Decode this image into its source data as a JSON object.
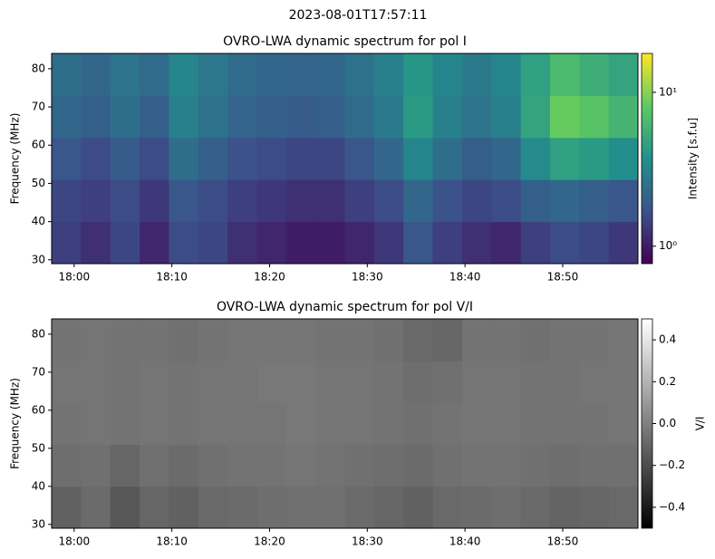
{
  "suptitle": "2023-08-01T17:57:11",
  "chart_data": [
    {
      "type": "heatmap",
      "title": "OVRO-LWA dynamic spectrum for pol I",
      "y_label": "Frequency (MHz)",
      "xlim": [
        1077.7,
        1137.7
      ],
      "ylim": [
        29,
        84
      ],
      "xticks": [
        {
          "value": 1080,
          "label": "18:00"
        },
        {
          "value": 1090,
          "label": "18:10"
        },
        {
          "value": 1100,
          "label": "18:20"
        },
        {
          "value": 1110,
          "label": "18:30"
        },
        {
          "value": 1120,
          "label": "18:40"
        },
        {
          "value": 1130,
          "label": "18:50"
        }
      ],
      "yticks": [
        30,
        40,
        50,
        60,
        70,
        80
      ],
      "x_bins": [
        1077.7,
        1080.7,
        1083.7,
        1086.7,
        1089.7,
        1092.7,
        1095.7,
        1098.7,
        1101.7,
        1104.7,
        1107.7,
        1110.7,
        1113.7,
        1116.7,
        1119.7,
        1122.7,
        1125.7,
        1128.7,
        1131.7,
        1134.7,
        1137.7
      ],
      "y_bins": [
        29,
        40,
        51,
        62,
        73,
        84
      ],
      "values": [
        [
          1.4,
          1.2,
          1.5,
          1.1,
          1.6,
          1.5,
          1.2,
          1.1,
          1.0,
          1.0,
          1.1,
          1.3,
          1.8,
          1.4,
          1.2,
          1.1,
          1.4,
          1.6,
          1.5,
          1.3
        ],
        [
          1.5,
          1.4,
          1.6,
          1.3,
          1.8,
          1.6,
          1.4,
          1.3,
          1.2,
          1.2,
          1.4,
          1.6,
          2.2,
          1.7,
          1.5,
          1.6,
          2.0,
          2.2,
          2.0,
          1.8
        ],
        [
          1.8,
          1.6,
          1.9,
          1.6,
          2.4,
          2.0,
          1.7,
          1.6,
          1.5,
          1.5,
          1.8,
          2.2,
          3.2,
          2.4,
          2.0,
          2.2,
          3.4,
          4.5,
          4.2,
          3.6
        ],
        [
          2.2,
          2.0,
          2.4,
          2.0,
          3.0,
          2.5,
          2.1,
          2.0,
          1.9,
          2.0,
          2.3,
          2.8,
          4.2,
          3.0,
          2.6,
          3.0,
          4.8,
          8.5,
          7.5,
          6.0
        ],
        [
          2.4,
          2.2,
          2.6,
          2.3,
          3.2,
          2.7,
          2.3,
          2.2,
          2.1,
          2.2,
          2.5,
          3.0,
          4.0,
          3.2,
          2.8,
          3.2,
          4.5,
          6.5,
          5.5,
          4.8
        ]
      ],
      "colorbar": {
        "label": "Intensity [s.f.u]",
        "scale": "log",
        "colormap": "viridis",
        "lim": [
          0.77,
          17.9
        ],
        "ticks": [
          {
            "value": 1,
            "label": "10⁰"
          },
          {
            "value": 10,
            "label": "10¹"
          }
        ]
      }
    },
    {
      "type": "heatmap",
      "title": "OVRO-LWA dynamic spectrum for pol V/I",
      "y_label": "Frequency (MHz)",
      "xlim": [
        1077.7,
        1137.7
      ],
      "ylim": [
        29,
        84
      ],
      "xticks": [
        {
          "value": 1080,
          "label": "18:00"
        },
        {
          "value": 1090,
          "label": "18:10"
        },
        {
          "value": 1100,
          "label": "18:20"
        },
        {
          "value": 1110,
          "label": "18:30"
        },
        {
          "value": 1120,
          "label": "18:40"
        },
        {
          "value": 1130,
          "label": "18:50"
        }
      ],
      "yticks": [
        30,
        40,
        50,
        60,
        70,
        80
      ],
      "x_bins": [
        1077.7,
        1080.7,
        1083.7,
        1086.7,
        1089.7,
        1092.7,
        1095.7,
        1098.7,
        1101.7,
        1104.7,
        1107.7,
        1110.7,
        1113.7,
        1116.7,
        1119.7,
        1122.7,
        1125.7,
        1128.7,
        1131.7,
        1134.7,
        1137.7
      ],
      "y_bins": [
        29,
        40,
        51,
        62,
        73,
        84
      ],
      "values": [
        [
          -0.12,
          -0.08,
          -0.16,
          -0.1,
          -0.12,
          -0.09,
          -0.08,
          -0.07,
          -0.06,
          -0.06,
          -0.08,
          -0.1,
          -0.12,
          -0.09,
          -0.08,
          -0.07,
          -0.09,
          -0.11,
          -0.1,
          -0.09
        ],
        [
          -0.07,
          -0.06,
          -0.1,
          -0.06,
          -0.08,
          -0.06,
          -0.05,
          -0.05,
          -0.04,
          -0.05,
          -0.06,
          -0.07,
          -0.08,
          -0.06,
          -0.05,
          -0.05,
          -0.06,
          -0.07,
          -0.06,
          -0.06
        ],
        [
          -0.05,
          -0.04,
          -0.05,
          -0.04,
          -0.05,
          -0.04,
          -0.04,
          -0.04,
          -0.03,
          -0.04,
          -0.04,
          -0.05,
          -0.06,
          -0.05,
          -0.04,
          -0.04,
          -0.05,
          -0.05,
          -0.05,
          -0.04
        ],
        [
          -0.04,
          -0.04,
          -0.05,
          -0.04,
          -0.05,
          -0.04,
          -0.04,
          -0.03,
          -0.03,
          -0.04,
          -0.04,
          -0.05,
          -0.07,
          -0.06,
          -0.04,
          -0.04,
          -0.05,
          -0.05,
          -0.04,
          -0.04
        ],
        [
          -0.05,
          -0.04,
          -0.05,
          -0.05,
          -0.06,
          -0.05,
          -0.04,
          -0.04,
          -0.04,
          -0.05,
          -0.05,
          -0.06,
          -0.09,
          -0.1,
          -0.05,
          -0.05,
          -0.06,
          -0.05,
          -0.05,
          -0.04
        ]
      ],
      "colorbar": {
        "label": "V/I",
        "scale": "linear",
        "colormap": "gray",
        "lim": [
          -0.5,
          0.5
        ],
        "ticks": [
          {
            "value": -0.4,
            "label": "−0.4"
          },
          {
            "value": -0.2,
            "label": "−0.2"
          },
          {
            "value": 0,
            "label": "0.0"
          },
          {
            "value": 0.2,
            "label": "0.2"
          },
          {
            "value": 0.4,
            "label": "0.4"
          }
        ]
      }
    }
  ]
}
